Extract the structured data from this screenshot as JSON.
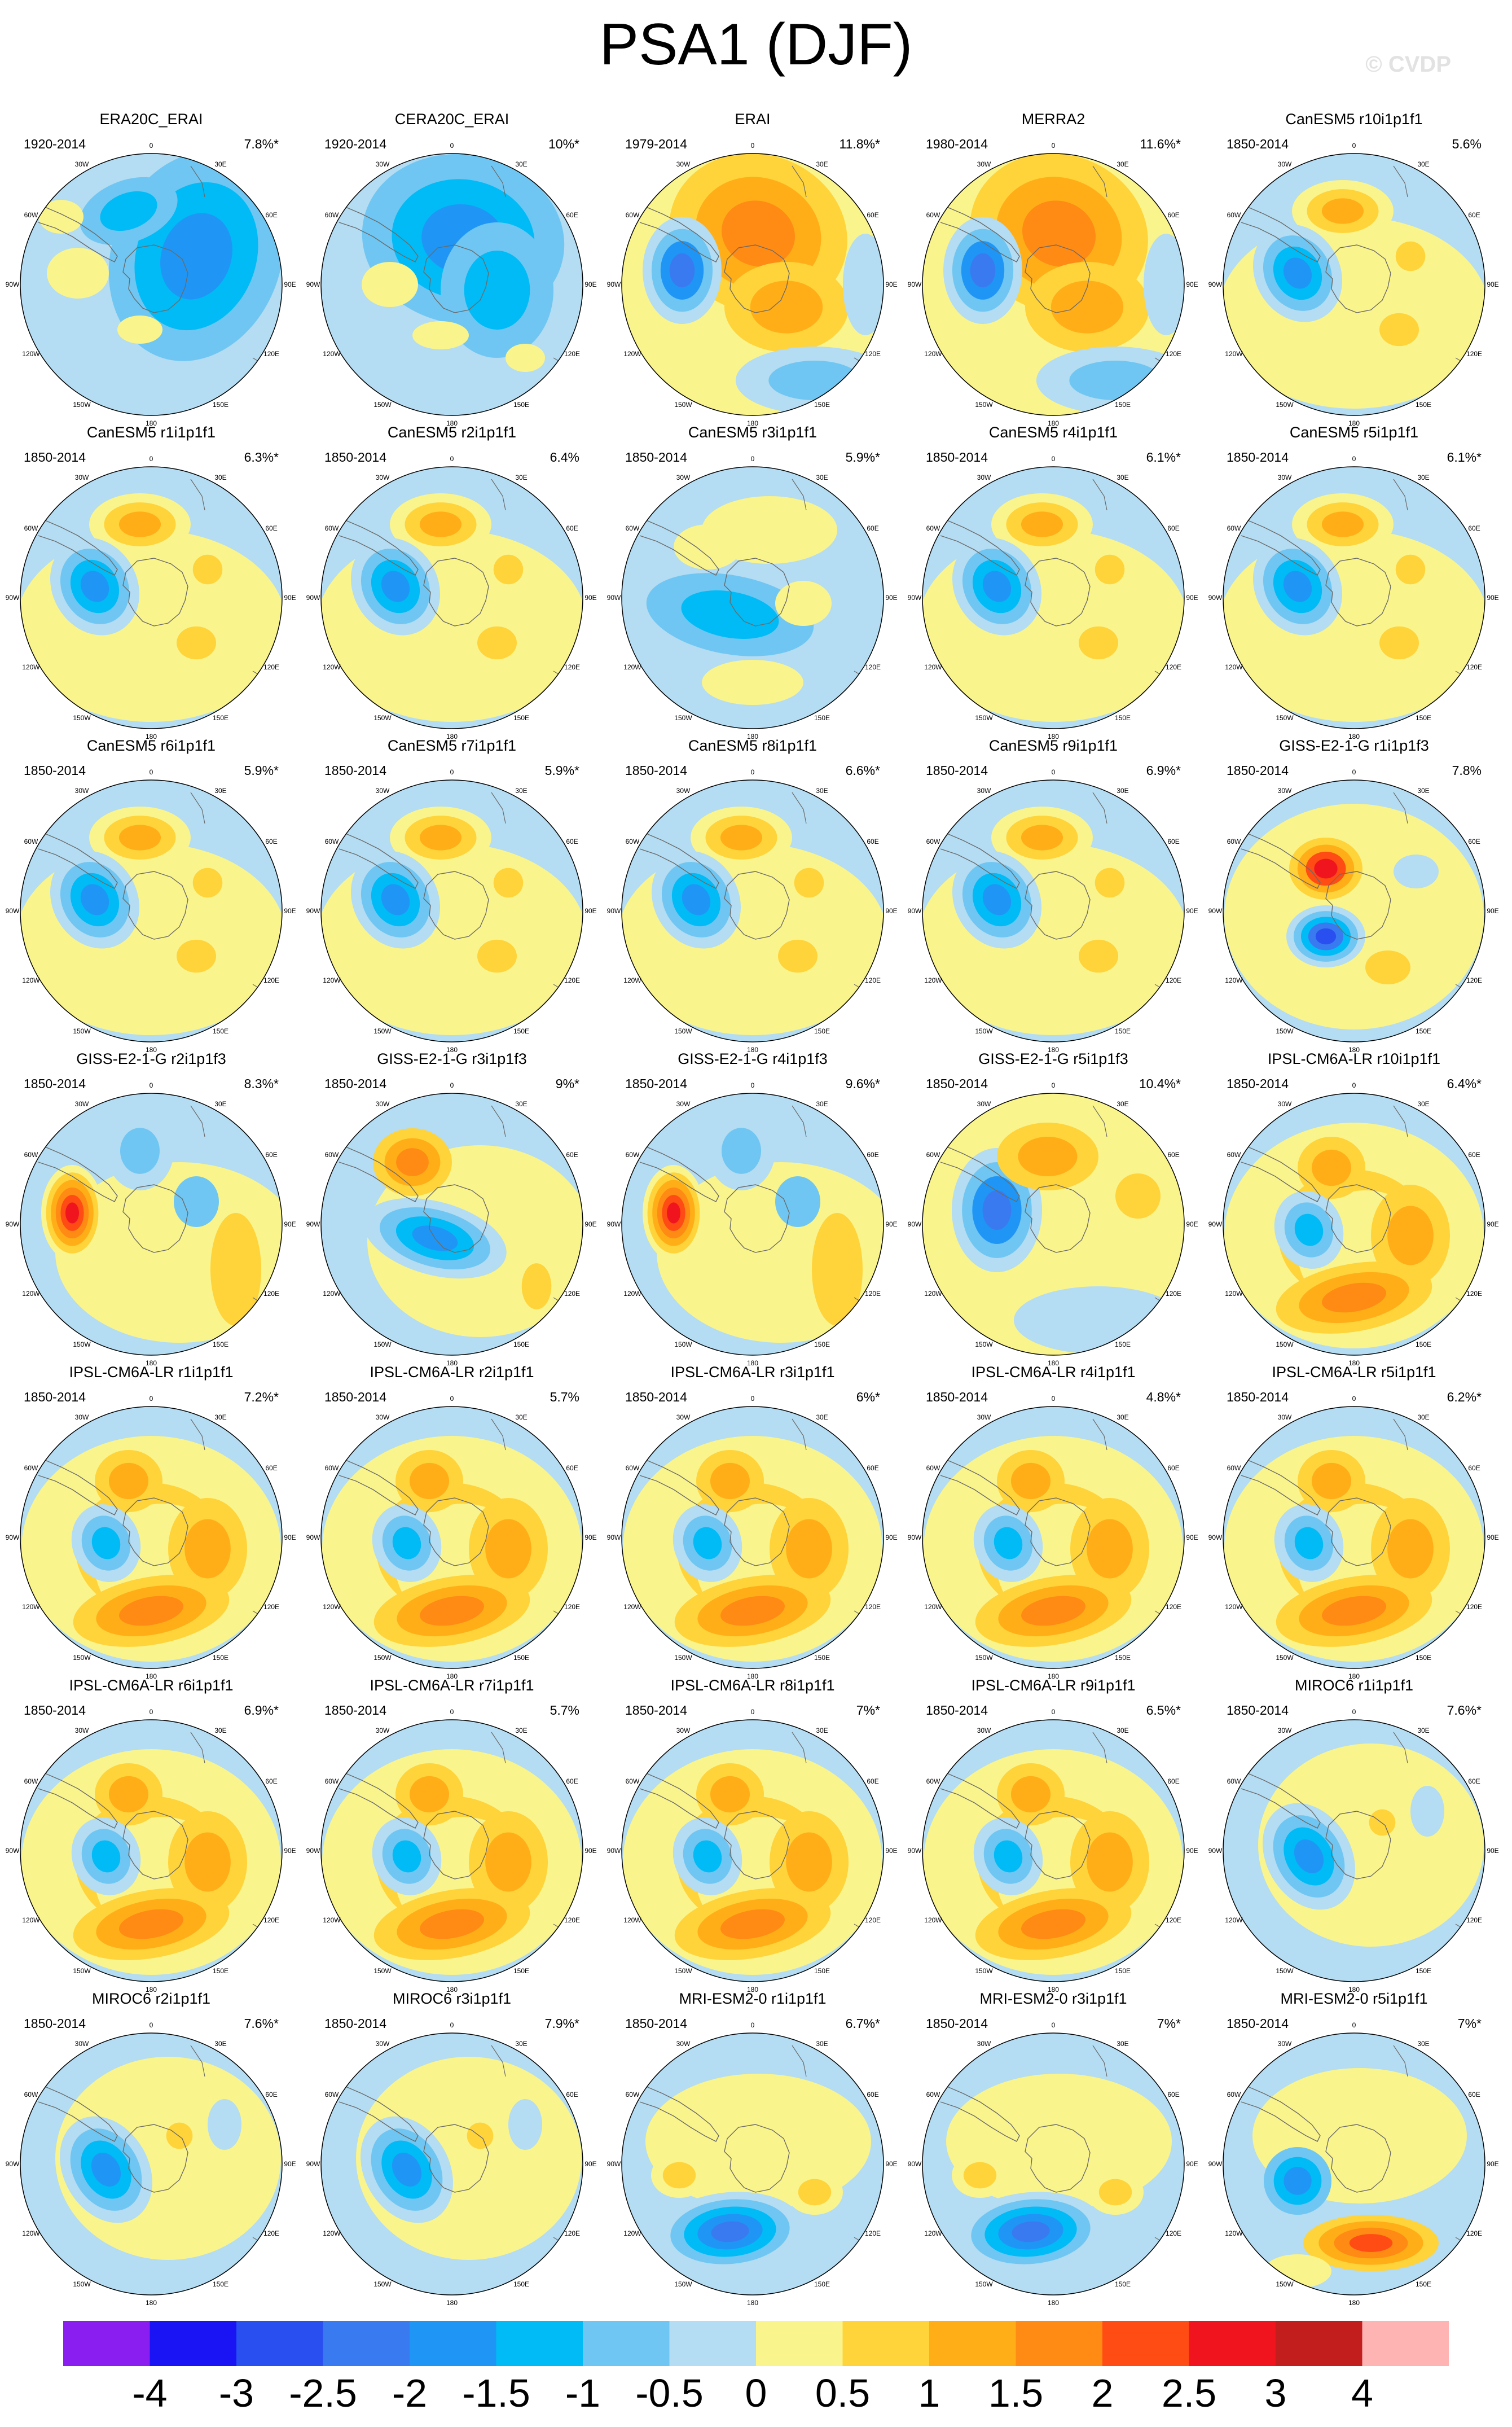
{
  "title": "PSA1 (DJF)",
  "watermark": "© CVDP",
  "lon_labels": [
    "0",
    "30E",
    "60E",
    "90E",
    "120E",
    "150E",
    "180",
    "150W",
    "120W",
    "90W",
    "60W",
    "30W"
  ],
  "colorbar": {
    "labels": [
      "-4",
      "-3",
      "-2.5",
      "-2",
      "-1.5",
      "-1",
      "-0.5",
      "0",
      "0.5",
      "1",
      "1.5",
      "2",
      "2.5",
      "3",
      "4"
    ],
    "colors": [
      "#8a1ef0",
      "#1a14f5",
      "#2a4ff0",
      "#3a7af0",
      "#1f96f5",
      "#00bbf5",
      "#6fc6f2",
      "#b4dcf2",
      "#faf48c",
      "#ffd33a",
      "#ffae18",
      "#ff8a14",
      "#ff4b14",
      "#f0141e",
      "#c21e1e",
      "#ffb4b4"
    ]
  },
  "panels": [
    {
      "name": "ERA20C_ERAI",
      "years": "1920-2014",
      "pct": "7.8%*",
      "pat": "era20c"
    },
    {
      "name": "CERA20C_ERAI",
      "years": "1920-2014",
      "pct": "10%*",
      "pat": "cera20c"
    },
    {
      "name": "ERAI",
      "years": "1979-2014",
      "pct": "11.8%*",
      "pat": "obs"
    },
    {
      "name": "MERRA2",
      "years": "1980-2014",
      "pct": "11.6%*",
      "pat": "obs"
    },
    {
      "name": "CanESM5 r10i1p1f1",
      "years": "1850-2014",
      "pct": "5.6%",
      "pat": "can"
    },
    {
      "name": "CanESM5 r1i1p1f1",
      "years": "1850-2014",
      "pct": "6.3%*",
      "pat": "can"
    },
    {
      "name": "CanESM5 r2i1p1f1",
      "years": "1850-2014",
      "pct": "6.4%",
      "pat": "can"
    },
    {
      "name": "CanESM5 r3i1p1f1",
      "years": "1850-2014",
      "pct": "5.9%*",
      "pat": "can2"
    },
    {
      "name": "CanESM5 r4i1p1f1",
      "years": "1850-2014",
      "pct": "6.1%*",
      "pat": "can"
    },
    {
      "name": "CanESM5 r5i1p1f1",
      "years": "1850-2014",
      "pct": "6.1%*",
      "pat": "can"
    },
    {
      "name": "CanESM5 r6i1p1f1",
      "years": "1850-2014",
      "pct": "5.9%*",
      "pat": "can"
    },
    {
      "name": "CanESM5 r7i1p1f1",
      "years": "1850-2014",
      "pct": "5.9%*",
      "pat": "can"
    },
    {
      "name": "CanESM5 r8i1p1f1",
      "years": "1850-2014",
      "pct": "6.6%*",
      "pat": "can"
    },
    {
      "name": "CanESM5 r9i1p1f1",
      "years": "1850-2014",
      "pct": "6.9%*",
      "pat": "can"
    },
    {
      "name": "GISS-E2-1-G r1i1p1f3",
      "years": "1850-2014",
      "pct": "7.8%",
      "pat": "giss1"
    },
    {
      "name": "GISS-E2-1-G r2i1p1f3",
      "years": "1850-2014",
      "pct": "8.3%*",
      "pat": "gissred"
    },
    {
      "name": "GISS-E2-1-G r3i1p1f3",
      "years": "1850-2014",
      "pct": "9%*",
      "pat": "giss3"
    },
    {
      "name": "GISS-E2-1-G r4i1p1f3",
      "years": "1850-2014",
      "pct": "9.6%*",
      "pat": "gissred"
    },
    {
      "name": "GISS-E2-1-G r5i1p1f3",
      "years": "1850-2014",
      "pct": "10.4%*",
      "pat": "giss5"
    },
    {
      "name": "IPSL-CM6A-LR r10i1p1f1",
      "years": "1850-2014",
      "pct": "6.4%*",
      "pat": "ipsl"
    },
    {
      "name": "IPSL-CM6A-LR r1i1p1f1",
      "years": "1850-2014",
      "pct": "7.2%*",
      "pat": "ipsl"
    },
    {
      "name": "IPSL-CM6A-LR r2i1p1f1",
      "years": "1850-2014",
      "pct": "5.7%",
      "pat": "ipsl"
    },
    {
      "name": "IPSL-CM6A-LR r3i1p1f1",
      "years": "1850-2014",
      "pct": "6%*",
      "pat": "ipsl"
    },
    {
      "name": "IPSL-CM6A-LR r4i1p1f1",
      "years": "1850-2014",
      "pct": "4.8%*",
      "pat": "ipsl"
    },
    {
      "name": "IPSL-CM6A-LR r5i1p1f1",
      "years": "1850-2014",
      "pct": "6.2%*",
      "pat": "ipsl"
    },
    {
      "name": "IPSL-CM6A-LR r6i1p1f1",
      "years": "1850-2014",
      "pct": "6.9%*",
      "pat": "ipsl"
    },
    {
      "name": "IPSL-CM6A-LR r7i1p1f1",
      "years": "1850-2014",
      "pct": "5.7%",
      "pat": "ipsl"
    },
    {
      "name": "IPSL-CM6A-LR r8i1p1f1",
      "years": "1850-2014",
      "pct": "7%*",
      "pat": "ipsl"
    },
    {
      "name": "IPSL-CM6A-LR r9i1p1f1",
      "years": "1850-2014",
      "pct": "6.5%*",
      "pat": "ipsl"
    },
    {
      "name": "MIROC6 r1i1p1f1",
      "years": "1850-2014",
      "pct": "7.6%*",
      "pat": "miroc"
    },
    {
      "name": "MIROC6 r2i1p1f1",
      "years": "1850-2014",
      "pct": "7.6%*",
      "pat": "miroc"
    },
    {
      "name": "MIROC6 r3i1p1f1",
      "years": "1850-2014",
      "pct": "7.9%*",
      "pat": "miroc"
    },
    {
      "name": "MRI-ESM2-0 r1i1p1f1",
      "years": "1850-2014",
      "pct": "6.7%*",
      "pat": "mri"
    },
    {
      "name": "MRI-ESM2-0 r3i1p1f1",
      "years": "1850-2014",
      "pct": "7%*",
      "pat": "mri"
    },
    {
      "name": "MRI-ESM2-0 r5i1p1f1",
      "years": "1850-2014",
      "pct": "7%*",
      "pat": "mri5"
    }
  ]
}
